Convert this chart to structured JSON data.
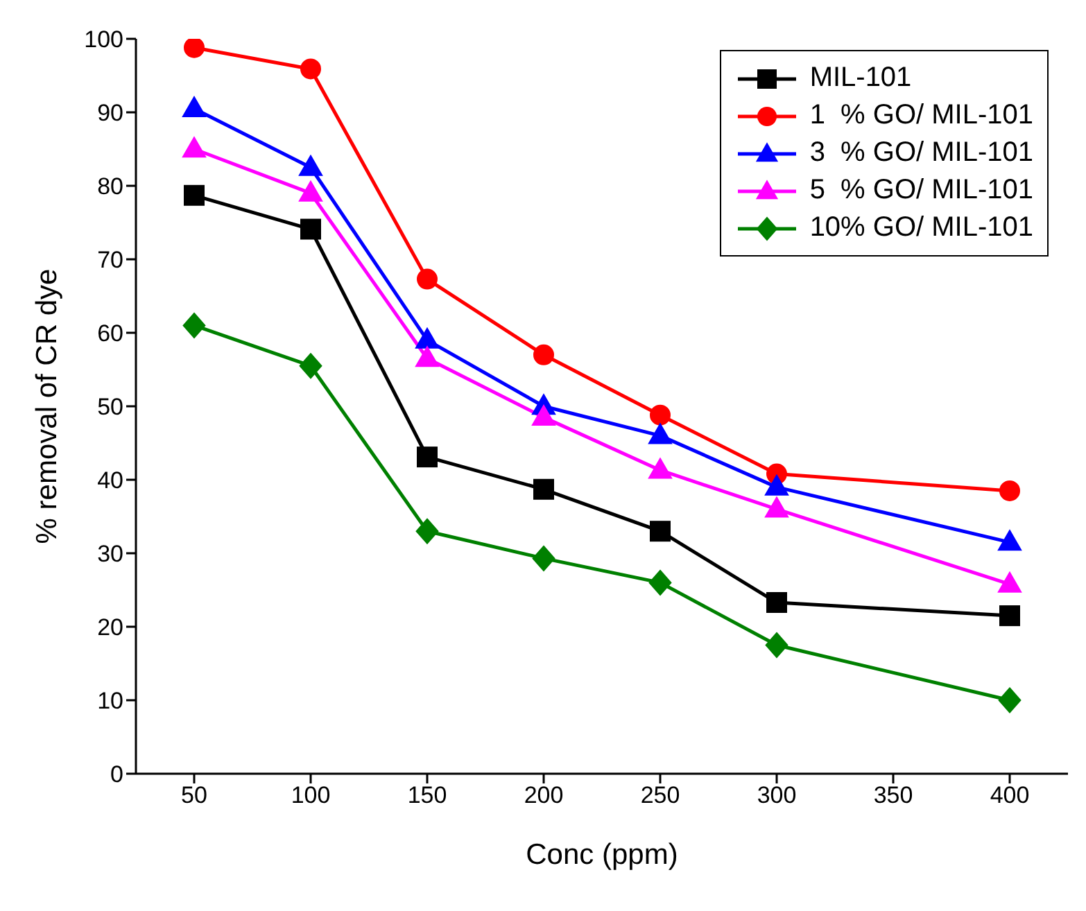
{
  "chart_data": {
    "type": "line",
    "xlabel": "Conc (ppm)",
    "ylabel": "% removal of CR dye",
    "x": [
      50,
      100,
      150,
      200,
      250,
      300,
      400
    ],
    "xlim": [
      25,
      425
    ],
    "xticks": [
      50,
      100,
      150,
      200,
      250,
      300,
      350,
      400
    ],
    "ylim": [
      0,
      100
    ],
    "yticks": [
      0,
      10,
      20,
      30,
      40,
      50,
      60,
      70,
      80,
      90,
      100
    ],
    "grid": false,
    "legend": "top right",
    "line_style": "solid",
    "series": [
      {
        "name": "MIL-101",
        "color": "#000000",
        "marker": "square",
        "values": [
          78.7,
          74.1,
          43.1,
          38.7,
          33.0,
          23.3,
          21.5
        ]
      },
      {
        "name": "1  % GO/ MIL-101",
        "color": "#ff0000",
        "marker": "circle",
        "values": [
          98.8,
          95.9,
          67.3,
          57.0,
          48.8,
          40.8,
          38.5
        ]
      },
      {
        "name": "3  % GO/ MIL-101",
        "color": "#0000ff",
        "marker": "triangle",
        "values": [
          90.5,
          82.5,
          59.0,
          50.0,
          46.0,
          39.0,
          31.5
        ]
      },
      {
        "name": "5  % GO/ MIL-101",
        "color": "#ff00ff",
        "marker": "triangle",
        "values": [
          85.0,
          79.0,
          56.5,
          48.5,
          41.3,
          36.0,
          25.8
        ]
      },
      {
        "name": "10% GO/ MIL-101",
        "color": "#008000",
        "marker": "diamond",
        "values": [
          61.0,
          55.5,
          33.0,
          29.3,
          26.0,
          17.5,
          10.0
        ]
      }
    ]
  }
}
